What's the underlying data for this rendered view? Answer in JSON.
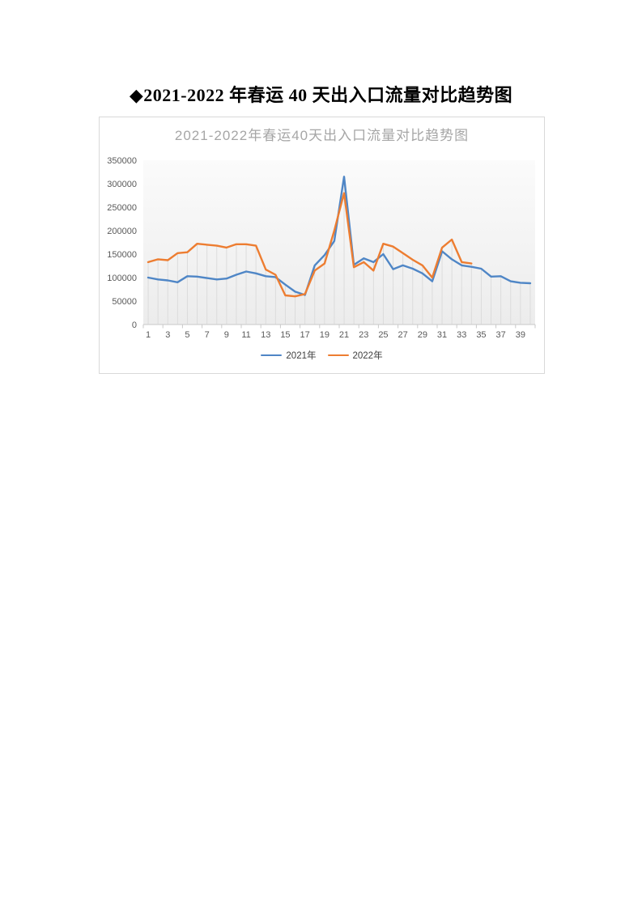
{
  "document": {
    "title": "◆2021-2022 年春运 40 天出入口流量对比趋势图"
  },
  "chart_data": {
    "type": "line",
    "title": "2021-2022年春运40天出入口流量对比趋势图",
    "xlabel": "",
    "ylabel": "",
    "x": [
      1,
      2,
      3,
      4,
      5,
      6,
      7,
      8,
      9,
      10,
      11,
      12,
      13,
      14,
      15,
      16,
      17,
      18,
      19,
      20,
      21,
      22,
      23,
      24,
      25,
      26,
      27,
      28,
      29,
      30,
      31,
      32,
      33,
      34,
      35,
      36,
      37,
      38,
      39,
      40
    ],
    "x_tick_labels": [
      "1",
      "3",
      "5",
      "7",
      "9",
      "11",
      "13",
      "15",
      "17",
      "19",
      "21",
      "23",
      "25",
      "27",
      "29",
      "31",
      "33",
      "35",
      "37",
      "39"
    ],
    "y_tick_labels": [
      "0",
      "50000",
      "100000",
      "150000",
      "200000",
      "250000",
      "300000",
      "350000"
    ],
    "ylim": [
      0,
      350000
    ],
    "y_tick_interval": 50000,
    "grid": false,
    "drop_lines": true,
    "legend_position": "bottom",
    "series": [
      {
        "name": "2021年",
        "color": "#4F86C6",
        "values": [
          100000,
          96000,
          94000,
          90000,
          103000,
          102000,
          99000,
          96000,
          98000,
          106000,
          113000,
          109000,
          103000,
          101000,
          85000,
          70000,
          63000,
          126000,
          148000,
          178000,
          315000,
          127000,
          141000,
          133000,
          150000,
          118000,
          126000,
          119000,
          109000,
          92000,
          156000,
          139000,
          126000,
          123000,
          119000,
          102000,
          103000,
          92000,
          89000,
          88000
        ]
      },
      {
        "name": "2022年",
        "color": "#ED7D31",
        "values": [
          133000,
          139000,
          137000,
          152000,
          154000,
          172000,
          170000,
          168000,
          164000,
          171000,
          171000,
          168000,
          117000,
          106000,
          62000,
          60000,
          65000,
          115000,
          130000,
          200000,
          280000,
          122000,
          133000,
          115000,
          172000,
          166000,
          152000,
          138000,
          126000,
          100000,
          164000,
          181000,
          133000,
          130000
        ]
      }
    ],
    "style_colors": {
      "chart_title": "#A6A6A6",
      "axis_labels": "#595959",
      "axis_line": "#C9C9C9",
      "drop_lines": "#DCDCDC",
      "chart_border": "#D9D9D9"
    }
  }
}
